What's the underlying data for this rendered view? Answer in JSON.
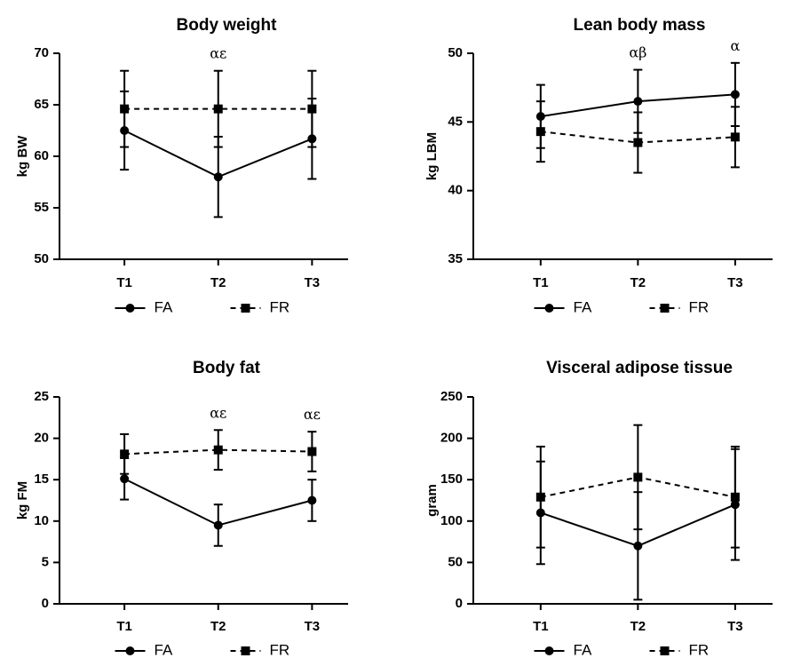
{
  "chart_data": [
    {
      "type": "line",
      "title": "Body weight",
      "xlabel": "",
      "ylabel": "kg  BW",
      "categories": [
        "T1",
        "T2",
        "T3"
      ],
      "ylim": [
        50,
        70
      ],
      "yticks": [
        "50",
        "55",
        "60",
        "65",
        "70"
      ],
      "series": [
        {
          "name": "FA",
          "style": "solid",
          "marker": "circle",
          "values": [
            62.5,
            58.0,
            61.7
          ],
          "err": [
            3.8,
            3.9,
            3.9
          ]
        },
        {
          "name": "FR",
          "style": "dashed",
          "marker": "square",
          "values": [
            64.6,
            64.6,
            64.6
          ],
          "err": [
            3.7,
            3.7,
            3.7
          ]
        }
      ],
      "annotations": [
        {
          "category": "T2",
          "text": "αε"
        }
      ],
      "legend": "bottom"
    },
    {
      "type": "line",
      "title": "Lean body mass",
      "xlabel": "",
      "ylabel": "kg  LBM",
      "categories": [
        "T1",
        "T2",
        "T3"
      ],
      "ylim": [
        35,
        50
      ],
      "yticks": [
        "35",
        "40",
        "45",
        "50"
      ],
      "series": [
        {
          "name": "FA",
          "style": "solid",
          "marker": "circle",
          "values": [
            45.4,
            46.5,
            47.0
          ],
          "err": [
            2.3,
            2.3,
            2.3
          ]
        },
        {
          "name": "FR",
          "style": "dashed",
          "marker": "square",
          "values": [
            44.3,
            43.5,
            43.9
          ],
          "err": [
            2.2,
            2.2,
            2.2
          ]
        }
      ],
      "annotations": [
        {
          "category": "T2",
          "text": "αβ"
        },
        {
          "category": "T3",
          "text": "α"
        }
      ],
      "legend": "bottom"
    },
    {
      "type": "line",
      "title": "Body fat",
      "xlabel": "",
      "ylabel": "kg FM",
      "categories": [
        "T1",
        "T2",
        "T3"
      ],
      "ylim": [
        0,
        25
      ],
      "yticks": [
        "0",
        "5",
        "10",
        "15",
        "20",
        "25"
      ],
      "series": [
        {
          "name": "FA",
          "style": "solid",
          "marker": "circle",
          "values": [
            15.1,
            9.5,
            12.5
          ],
          "err": [
            2.5,
            2.5,
            2.5
          ]
        },
        {
          "name": "FR",
          "style": "dashed",
          "marker": "square",
          "values": [
            18.1,
            18.6,
            18.4
          ],
          "err": [
            2.4,
            2.4,
            2.4
          ]
        }
      ],
      "annotations": [
        {
          "category": "T2",
          "text": "αε"
        },
        {
          "category": "T3",
          "text": "αε"
        }
      ],
      "legend": "bottom"
    },
    {
      "type": "line",
      "title": "Visceral adipose tissue",
      "xlabel": "",
      "ylabel": "gram",
      "categories": [
        "T1",
        "T2",
        "T3"
      ],
      "ylim": [
        0,
        250
      ],
      "yticks": [
        "0",
        "50",
        "100",
        "150",
        "200",
        "250"
      ],
      "series": [
        {
          "name": "FA",
          "style": "solid",
          "marker": "circle",
          "values": [
            110,
            70,
            120
          ],
          "err": [
            62,
            65,
            67
          ]
        },
        {
          "name": "FR",
          "style": "dashed",
          "marker": "square",
          "values": [
            129,
            153,
            129
          ],
          "err": [
            61,
            63,
            61
          ]
        }
      ],
      "annotations": [],
      "legend": "bottom"
    }
  ]
}
